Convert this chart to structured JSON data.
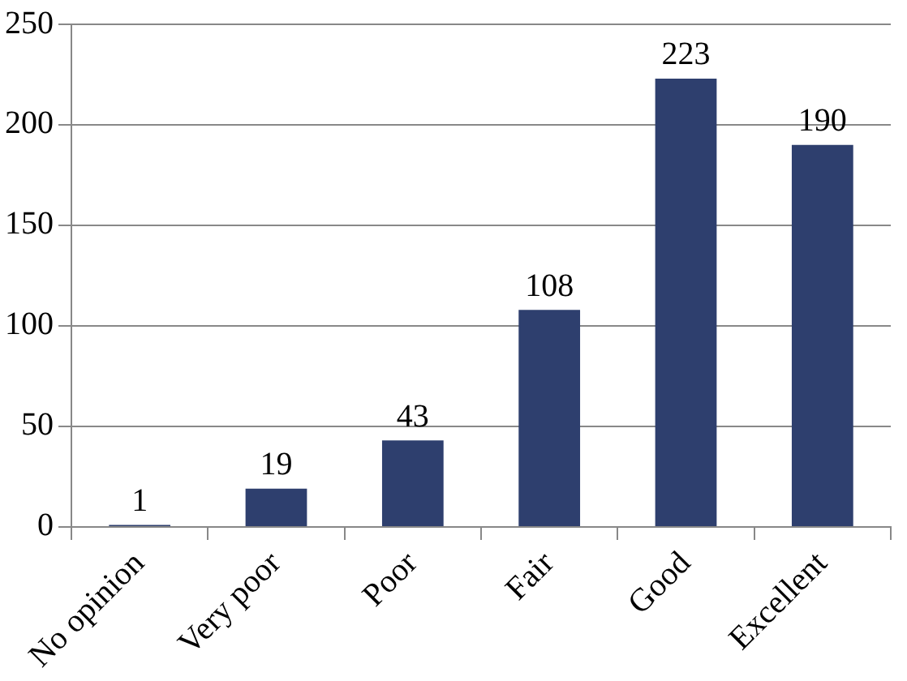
{
  "chart_data": {
    "type": "bar",
    "categories": [
      "No opinion",
      "Very poor",
      "Poor",
      "Fair",
      "Good",
      "Excellent"
    ],
    "values": [
      1,
      19,
      43,
      108,
      223,
      190
    ],
    "color": "#2e3f6e",
    "ylim": [
      0,
      250
    ],
    "yticks": [
      0,
      50,
      100,
      150,
      200,
      250
    ],
    "grid": "y",
    "data_labels": true
  }
}
